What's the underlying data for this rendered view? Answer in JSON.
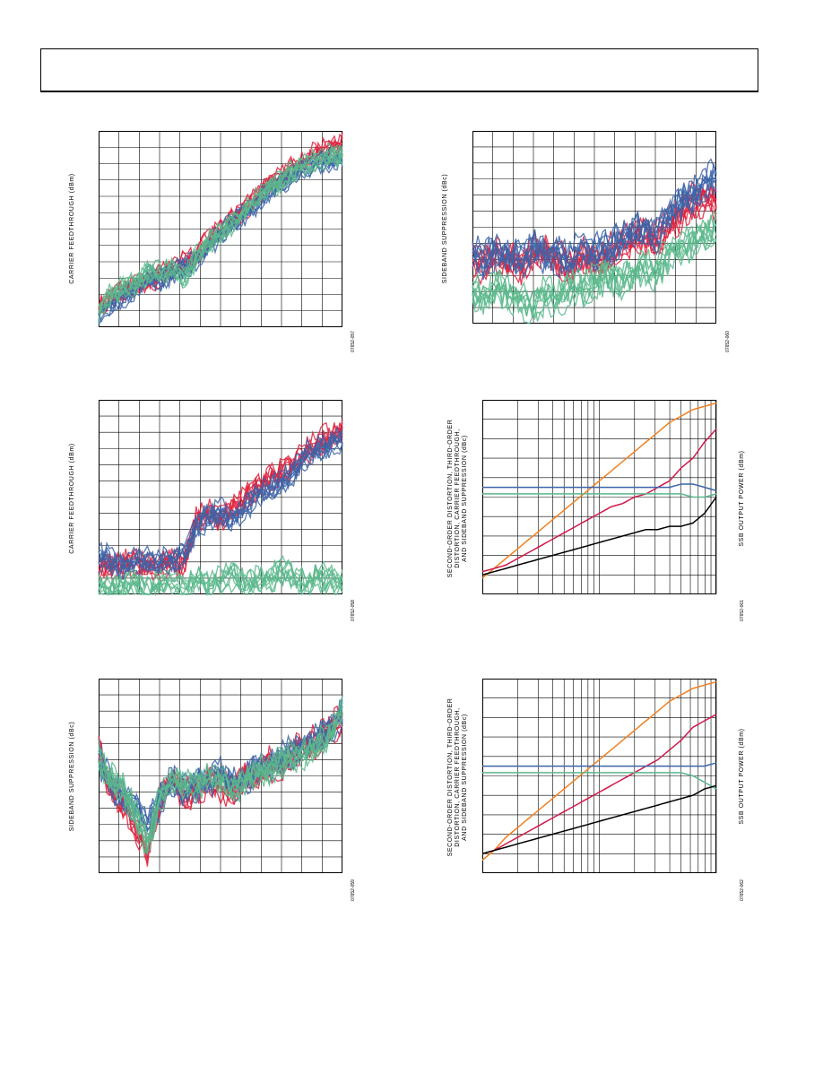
{
  "charts": [
    {
      "id": "c1",
      "ylabel": "CARRIER FEEDTHROUGH (dBm)",
      "figid": "07652-057"
    },
    {
      "id": "c2",
      "ylabel": "SIDEBAND SUPPRESSION (dBc)",
      "figid": "07652-060"
    },
    {
      "id": "c3",
      "ylabel": "CARRIER FEEDTHROUGH (dBm)",
      "figid": "07652-058"
    },
    {
      "id": "c4",
      "ylabel": "SECOND-ORDER DISTORTION, THIRD-ORDER\nDISTORTION, CARRIER FEEDTHROUGH,\nAND SIDEBAND SUPPRESSION (dBc)",
      "ylabel2": "SSB OUTPUT POWER (dBm)",
      "figid": "07652-061"
    },
    {
      "id": "c5",
      "ylabel": "SIDEBAND SUPPRESSION (dBc)",
      "figid": "07652-059"
    },
    {
      "id": "c6",
      "ylabel": "SECOND-ORDER DISTORTION, THIRD-ORDER\nDISTORTION, CARRIER FEEDTHROUGH,\nAND SIDEBAND SUPPRESSION (dBc)",
      "ylabel2": "SSB OUTPUT POWER (dBm)",
      "figid": "07652-062"
    }
  ],
  "colors": {
    "red": "#e0203c",
    "blue": "#3c64a8",
    "green": "#5ab88c",
    "orange": "#f08020",
    "black": "#000000",
    "crimson": "#d01848",
    "grid": "#000000"
  },
  "chart_data": [
    {
      "type": "line",
      "series": [
        {
          "color": "red",
          "values": [
            -70,
            -67,
            -66,
            -64,
            -63,
            -62,
            -60,
            -58,
            -57,
            -52,
            -50,
            -47,
            -45,
            -41,
            -38,
            -37,
            -34,
            -32,
            -30,
            -29,
            -28
          ]
        },
        {
          "color": "blue",
          "values": [
            -72,
            -69,
            -67,
            -65,
            -62,
            -63,
            -61,
            -60,
            -58,
            -54,
            -51,
            -48,
            -46,
            -43,
            -40,
            -38,
            -36,
            -34,
            -33,
            -32,
            -32
          ]
        },
        {
          "color": "green",
          "values": [
            -71,
            -66,
            -65,
            -64,
            -61,
            -61,
            -60,
            -62,
            -57,
            -53,
            -51,
            -48,
            -45,
            -42,
            -39,
            -38,
            -35,
            -33,
            -32,
            -31,
            -31
          ]
        }
      ]
    },
    {
      "type": "line",
      "series": [
        {
          "color": "red",
          "values": [
            -45,
            -46,
            -44,
            -45,
            -46,
            -44,
            -43,
            -45,
            -46,
            -44,
            -45,
            -44,
            -43,
            -42,
            -41,
            -42,
            -40,
            -38,
            -36,
            -35,
            -36
          ]
        },
        {
          "color": "blue",
          "values": [
            -44,
            -45,
            -43,
            -44,
            -45,
            -43,
            -44,
            -44,
            -45,
            -43,
            -44,
            -43,
            -42,
            -41,
            -40,
            -41,
            -38,
            -36,
            -35,
            -33,
            -32
          ]
        },
        {
          "color": "green",
          "values": [
            -50,
            -51,
            -49,
            -50,
            -51,
            -52,
            -50,
            -51,
            -49,
            -50,
            -48,
            -47,
            -48,
            -47,
            -46,
            -47,
            -44,
            -43,
            -42,
            -41,
            -40
          ]
        }
      ]
    },
    {
      "type": "line",
      "series": [
        {
          "color": "red",
          "values": [
            -64,
            -64,
            -64,
            -63,
            -64,
            -64,
            -63,
            -64,
            -55,
            -53,
            -54,
            -52,
            -50,
            -48,
            -46,
            -45,
            -43,
            -40,
            -39,
            -37,
            -36
          ]
        },
        {
          "color": "blue",
          "values": [
            -62,
            -63,
            -64,
            -63,
            -63,
            -63,
            -63,
            -62,
            -56,
            -54,
            -53,
            -55,
            -52,
            -49,
            -48,
            -47,
            -45,
            -41,
            -40,
            -39,
            -38
          ]
        },
        {
          "color": "green",
          "values": [
            -68,
            -69,
            -68,
            -67,
            -69,
            -68,
            -67,
            -69,
            -66,
            -68,
            -67,
            -66,
            -68,
            -67,
            -67,
            -65,
            -66,
            -68,
            -66,
            -67,
            -68
          ]
        }
      ]
    },
    {
      "type": "line",
      "series": [
        {
          "color": "orange",
          "values": [
            -70,
            -67,
            -64,
            -61,
            -58,
            -55,
            -52,
            -49,
            -46,
            -43,
            -40,
            -37,
            -34,
            -31,
            -28,
            -25,
            -22,
            -20,
            -18,
            -17,
            -16
          ]
        },
        {
          "color": "crimson",
          "values": [
            -68,
            -67,
            -66,
            -64,
            -62,
            -60,
            -58,
            -56,
            -54,
            -52,
            -50,
            -48,
            -47,
            -45,
            -44,
            -42,
            -40,
            -36,
            -33,
            -28,
            -24
          ]
        },
        {
          "color": "blue",
          "values": [
            -42,
            -42,
            -42,
            -42,
            -42,
            -42,
            -42,
            -42,
            -42,
            -42,
            -42,
            -42,
            -42,
            -42,
            -42,
            -42,
            -42,
            -41,
            -41,
            -42,
            -43
          ]
        },
        {
          "color": "green",
          "values": [
            -44,
            -44,
            -44,
            -44,
            -44,
            -44,
            -44,
            -44,
            -44,
            -44,
            -44,
            -44,
            -44,
            -44,
            -44,
            -44,
            -44,
            -44,
            -45,
            -45,
            -44
          ]
        },
        {
          "color": "black",
          "values": [
            -69,
            -68,
            -67,
            -66,
            -65,
            -64,
            -63,
            -62,
            -61,
            -60,
            -59,
            -58,
            -57,
            -56,
            -55,
            -55,
            -54,
            -54,
            -53,
            -50,
            -45
          ]
        }
      ]
    },
    {
      "type": "line",
      "series": [
        {
          "color": "red",
          "values": [
            -38,
            -45,
            -47,
            -52,
            -56,
            -47,
            -42,
            -46,
            -45,
            -43,
            -44,
            -45,
            -42,
            -43,
            -40,
            -41,
            -38,
            -37,
            -36,
            -34,
            -32
          ]
        },
        {
          "color": "blue",
          "values": [
            -39,
            -44,
            -46,
            -48,
            -51,
            -47,
            -43,
            -45,
            -44,
            -43,
            -42,
            -44,
            -43,
            -41,
            -40,
            -39,
            -38,
            -37,
            -35,
            -34,
            -31
          ]
        },
        {
          "color": "green",
          "values": [
            -39,
            -43,
            -45,
            -49,
            -55,
            -46,
            -43,
            -44,
            -44,
            -42,
            -43,
            -45,
            -43,
            -42,
            -41,
            -40,
            -39,
            -38,
            -37,
            -35,
            -30
          ]
        }
      ]
    },
    {
      "type": "line",
      "series": [
        {
          "color": "orange",
          "values": [
            -71,
            -68,
            -64,
            -61,
            -58,
            -55,
            -52,
            -49,
            -46,
            -43,
            -40,
            -37,
            -34,
            -31,
            -28,
            -25,
            -22,
            -20,
            -18,
            -17,
            -16
          ]
        },
        {
          "color": "crimson",
          "values": [
            -69,
            -68,
            -66,
            -64,
            -62,
            -60,
            -58,
            -56,
            -54,
            -52,
            -50,
            -48,
            -46,
            -44,
            -42,
            -40,
            -37,
            -34,
            -30,
            -28,
            -26
          ]
        },
        {
          "color": "blue",
          "values": [
            -42,
            -42,
            -42,
            -42,
            -42,
            -42,
            -42,
            -42,
            -42,
            -42,
            -42,
            -42,
            -42,
            -42,
            -42,
            -42,
            -42,
            -42,
            -42,
            -42,
            -41
          ]
        },
        {
          "color": "green",
          "values": [
            -44,
            -44,
            -44,
            -44,
            -44,
            -44,
            -44,
            -44,
            -44,
            -44,
            -44,
            -44,
            -44,
            -44,
            -44,
            -44,
            -44,
            -44,
            -45,
            -47,
            -49
          ]
        },
        {
          "color": "black",
          "values": [
            -69,
            -68,
            -67,
            -66,
            -65,
            -64,
            -63,
            -62,
            -61,
            -60,
            -59,
            -58,
            -57,
            -56,
            -55,
            -54,
            -53,
            -52,
            -51,
            -49,
            -48
          ]
        }
      ]
    }
  ]
}
